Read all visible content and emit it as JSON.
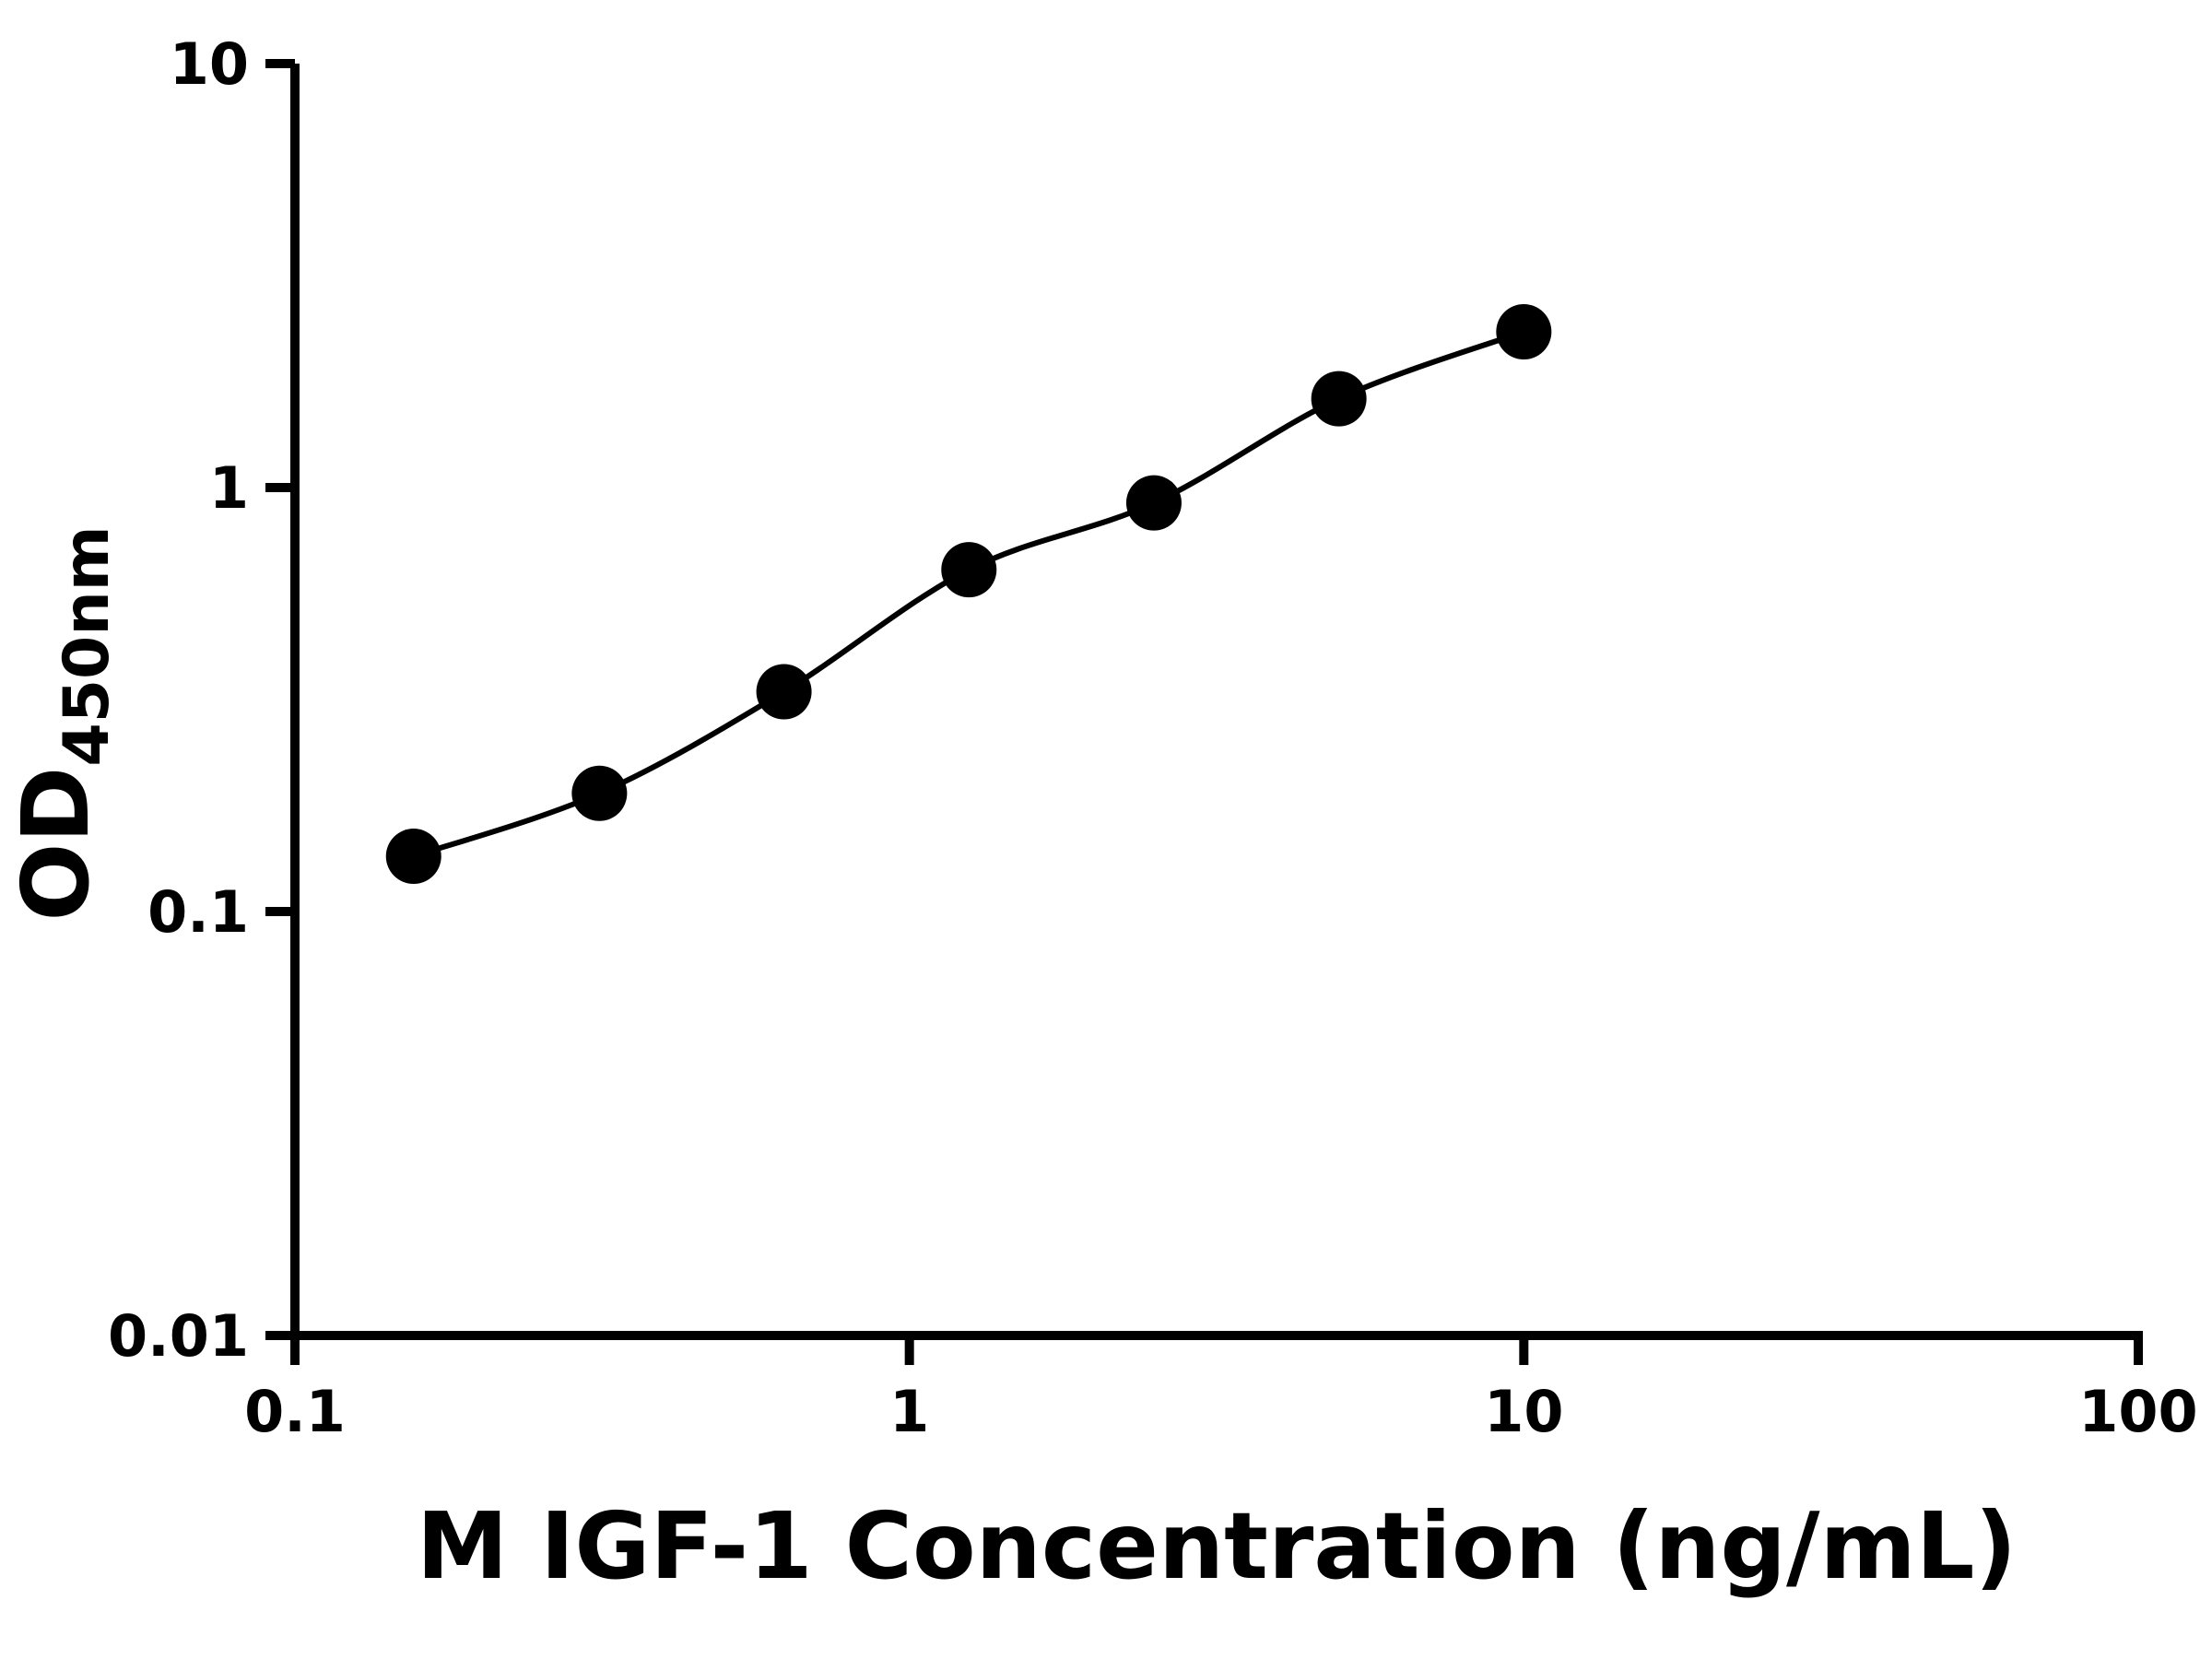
{
  "chart_data": {
    "type": "scatter",
    "title": "",
    "xlabel": "M IGF-1 Concentration (ng/mL)",
    "ylabel": "OD",
    "ylabel_sub": "450nm",
    "x_scale": "log",
    "y_scale": "log",
    "xlim": [
      0.1,
      100
    ],
    "ylim": [
      0.01,
      10
    ],
    "grid": false,
    "legend": "none",
    "x": [
      0.156,
      0.313,
      0.625,
      1.25,
      2.5,
      5,
      10
    ],
    "y": [
      0.135,
      0.19,
      0.33,
      0.64,
      0.92,
      1.62,
      2.33
    ],
    "x_ticks": [
      {
        "value": 0.1,
        "label": "0.1"
      },
      {
        "value": 1,
        "label": "1"
      },
      {
        "value": 10,
        "label": "10"
      },
      {
        "value": 100,
        "label": "100"
      }
    ],
    "y_ticks": [
      {
        "value": 0.01,
        "label": "0.01"
      },
      {
        "value": 0.1,
        "label": "0.1"
      },
      {
        "value": 1,
        "label": "1"
      },
      {
        "value": 10,
        "label": "10"
      }
    ],
    "marker": {
      "shape": "circle",
      "fill": "#000000"
    },
    "colors": {
      "background": "#ffffff",
      "axis": "#000000",
      "line": "#000000",
      "point": "#000000",
      "text": "#000000"
    }
  }
}
